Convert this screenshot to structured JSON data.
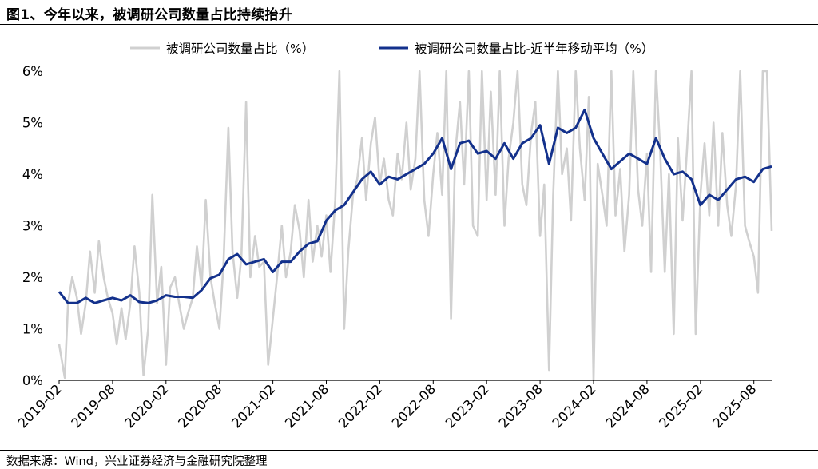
{
  "figure": {
    "title": "图1、今年以来，被调研公司数量占比持续抬升",
    "source": "数据来源：Wind，兴业证券经济与金融研究院整理"
  },
  "colors": {
    "weekly": "#d0d0d0",
    "moving_avg": "#13318c",
    "axis": "#000000"
  },
  "chart_data": {
    "type": "line",
    "title": "图1、今年以来，被调研公司数量占比持续抬升",
    "xlabel": "",
    "ylabel": "",
    "ylim": [
      0,
      6
    ],
    "y_ticks": [
      "0%",
      "1%",
      "2%",
      "3%",
      "4%",
      "5%",
      "6%"
    ],
    "x_ticks": [
      "2019-02",
      "2019-08",
      "2020-02",
      "2020-08",
      "2021-02",
      "2021-08",
      "2022-02",
      "2022-08",
      "2023-02",
      "2023-08",
      "2024-02",
      "2024-08",
      "2025-02",
      "2025-08"
    ],
    "x_range": [
      "2019-02",
      "2025-10"
    ],
    "grid": false,
    "legend_position": "top",
    "series": [
      {
        "name": "被调研公司数量占比（%）",
        "style": "light-gray-line",
        "points": [
          [
            "2019-02",
            0.7
          ],
          [
            "2019-02-20",
            0.05
          ],
          [
            "2019-03",
            1.5
          ],
          [
            "2019-03-15",
            2.0
          ],
          [
            "2019-04",
            1.6
          ],
          [
            "2019-04-15",
            0.9
          ],
          [
            "2019-05",
            1.5
          ],
          [
            "2019-05-15",
            2.5
          ],
          [
            "2019-06",
            1.7
          ],
          [
            "2019-06-15",
            2.7
          ],
          [
            "2019-07",
            2.0
          ],
          [
            "2019-07-15",
            1.6
          ],
          [
            "2019-08",
            1.3
          ],
          [
            "2019-08-15",
            0.7
          ],
          [
            "2019-09",
            1.4
          ],
          [
            "2019-09-15",
            0.8
          ],
          [
            "2019-10",
            1.5
          ],
          [
            "2019-10-15",
            2.6
          ],
          [
            "2019-11",
            1.7
          ],
          [
            "2019-11-15",
            0.1
          ],
          [
            "2019-12",
            1.0
          ],
          [
            "2019-12-15",
            3.6
          ],
          [
            "2020-01",
            1.5
          ],
          [
            "2020-01-15",
            2.2
          ],
          [
            "2020-02",
            0.3
          ],
          [
            "2020-02-15",
            1.8
          ],
          [
            "2020-03",
            2.0
          ],
          [
            "2020-03-15",
            1.5
          ],
          [
            "2020-04",
            1.0
          ],
          [
            "2020-04-15",
            1.3
          ],
          [
            "2020-05",
            1.6
          ],
          [
            "2020-05-15",
            2.6
          ],
          [
            "2020-06",
            1.8
          ],
          [
            "2020-06-15",
            3.5
          ],
          [
            "2020-07",
            2.0
          ],
          [
            "2020-07-15",
            1.5
          ],
          [
            "2020-08",
            1.0
          ],
          [
            "2020-08-15",
            2.3
          ],
          [
            "2020-09",
            4.9
          ],
          [
            "2020-09-15",
            2.5
          ],
          [
            "2020-10",
            1.6
          ],
          [
            "2020-10-15",
            2.4
          ],
          [
            "2020-11",
            5.4
          ],
          [
            "2020-11-15",
            2.0
          ],
          [
            "2020-12",
            2.8
          ],
          [
            "2020-12-15",
            2.2
          ],
          [
            "2021-01",
            2.3
          ],
          [
            "2021-01-15",
            0.3
          ],
          [
            "2021-02",
            1.2
          ],
          [
            "2021-02-15",
            2.0
          ],
          [
            "2021-03",
            3.0
          ],
          [
            "2021-03-15",
            2.0
          ],
          [
            "2021-04",
            2.5
          ],
          [
            "2021-04-15",
            3.4
          ],
          [
            "2021-05",
            2.9
          ],
          [
            "2021-05-15",
            2.0
          ],
          [
            "2021-06",
            3.5
          ],
          [
            "2021-06-15",
            2.3
          ],
          [
            "2021-07",
            3.0
          ],
          [
            "2021-07-15",
            2.4
          ],
          [
            "2021-08",
            3.2
          ],
          [
            "2021-08-15",
            2.1
          ],
          [
            "2021-09",
            3.5
          ],
          [
            "2021-09-15",
            6.0
          ],
          [
            "2021-10",
            1.0
          ],
          [
            "2021-10-15",
            2.5
          ],
          [
            "2021-11",
            3.6
          ],
          [
            "2021-11-15",
            3.9
          ],
          [
            "2021-12",
            4.7
          ],
          [
            "2021-12-15",
            3.5
          ],
          [
            "2022-01",
            4.6
          ],
          [
            "2022-01-15",
            5.1
          ],
          [
            "2022-02",
            3.8
          ],
          [
            "2022-02-15",
            4.3
          ],
          [
            "2022-03",
            3.5
          ],
          [
            "2022-03-15",
            3.2
          ],
          [
            "2022-04",
            4.4
          ],
          [
            "2022-04-15",
            3.9
          ],
          [
            "2022-05",
            5.0
          ],
          [
            "2022-05-15",
            3.7
          ],
          [
            "2022-06",
            4.3
          ],
          [
            "2022-06-15",
            6.0
          ],
          [
            "2022-07",
            3.5
          ],
          [
            "2022-07-15",
            2.8
          ],
          [
            "2022-08",
            4.0
          ],
          [
            "2022-08-15",
            4.8
          ],
          [
            "2022-09",
            3.6
          ],
          [
            "2022-09-15",
            6.0
          ],
          [
            "2022-10",
            1.2
          ],
          [
            "2022-10-15",
            4.4
          ],
          [
            "2022-11",
            5.4
          ],
          [
            "2022-11-15",
            3.8
          ],
          [
            "2022-12",
            6.0
          ],
          [
            "2022-12-15",
            3.0
          ],
          [
            "2023-01",
            2.8
          ],
          [
            "2023-01-15",
            6.0
          ],
          [
            "2023-02",
            3.5
          ],
          [
            "2023-02-15",
            5.6
          ],
          [
            "2023-03",
            3.6
          ],
          [
            "2023-03-15",
            6.0
          ],
          [
            "2023-04",
            3.0
          ],
          [
            "2023-04-15",
            4.3
          ],
          [
            "2023-05",
            5.0
          ],
          [
            "2023-05-15",
            6.0
          ],
          [
            "2023-06",
            3.8
          ],
          [
            "2023-06-15",
            3.4
          ],
          [
            "2023-07",
            4.8
          ],
          [
            "2023-07-15",
            5.4
          ],
          [
            "2023-08",
            2.8
          ],
          [
            "2023-08-15",
            3.8
          ],
          [
            "2023-09",
            0.2
          ],
          [
            "2023-09-15",
            3.6
          ],
          [
            "2023-10",
            6.0
          ],
          [
            "2023-10-15",
            4.0
          ],
          [
            "2023-11",
            4.5
          ],
          [
            "2023-11-15",
            3.1
          ],
          [
            "2023-12",
            6.0
          ],
          [
            "2023-12-15",
            4.5
          ],
          [
            "2024-01",
            3.5
          ],
          [
            "2024-01-15",
            5.5
          ],
          [
            "2024-02",
            0.0
          ],
          [
            "2024-02-15",
            4.2
          ],
          [
            "2024-03",
            3.6
          ],
          [
            "2024-03-15",
            3.0
          ],
          [
            "2024-04",
            6.0
          ],
          [
            "2024-04-15",
            3.2
          ],
          [
            "2024-05",
            4.1
          ],
          [
            "2024-05-15",
            2.5
          ],
          [
            "2024-06",
            3.6
          ],
          [
            "2024-06-15",
            6.0
          ],
          [
            "2024-07",
            3.7
          ],
          [
            "2024-07-15",
            3.0
          ],
          [
            "2024-08",
            4.4
          ],
          [
            "2024-08-15",
            2.1
          ],
          [
            "2024-09",
            6.0
          ],
          [
            "2024-09-15",
            4.5
          ],
          [
            "2024-10",
            2.1
          ],
          [
            "2024-10-15",
            4.0
          ],
          [
            "2024-11",
            0.9
          ],
          [
            "2024-11-15",
            4.7
          ],
          [
            "2024-12",
            3.1
          ],
          [
            "2024-12-15",
            4.4
          ],
          [
            "2025-01",
            6.0
          ],
          [
            "2025-01-15",
            0.9
          ],
          [
            "2025-02",
            3.6
          ],
          [
            "2025-02-15",
            4.6
          ],
          [
            "2025-03",
            3.2
          ],
          [
            "2025-03-15",
            5.0
          ],
          [
            "2025-04",
            3.0
          ],
          [
            "2025-04-15",
            4.8
          ],
          [
            "2025-05",
            3.4
          ],
          [
            "2025-05-15",
            2.8
          ],
          [
            "2025-06",
            3.8
          ],
          [
            "2025-06-15",
            6.0
          ],
          [
            "2025-07",
            3.0
          ],
          [
            "2025-07-15",
            2.7
          ],
          [
            "2025-08",
            2.4
          ],
          [
            "2025-08-15",
            1.7
          ],
          [
            "2025-09",
            6.0
          ],
          [
            "2025-09-15",
            6.0
          ],
          [
            "2025-10",
            2.9
          ]
        ]
      },
      {
        "name": "被调研公司数量占比-近半年移动平均（%）",
        "style": "dark-blue-line",
        "points": [
          [
            "2019-02",
            1.72
          ],
          [
            "2019-03",
            1.5
          ],
          [
            "2019-04",
            1.5
          ],
          [
            "2019-05",
            1.6
          ],
          [
            "2019-06",
            1.5
          ],
          [
            "2019-07",
            1.55
          ],
          [
            "2019-08",
            1.6
          ],
          [
            "2019-09",
            1.55
          ],
          [
            "2019-10",
            1.65
          ],
          [
            "2019-11",
            1.52
          ],
          [
            "2019-12",
            1.5
          ],
          [
            "2020-01",
            1.55
          ],
          [
            "2020-02",
            1.65
          ],
          [
            "2020-03",
            1.62
          ],
          [
            "2020-04",
            1.62
          ],
          [
            "2020-05",
            1.6
          ],
          [
            "2020-06",
            1.75
          ],
          [
            "2020-07",
            1.98
          ],
          [
            "2020-08",
            2.05
          ],
          [
            "2020-09",
            2.35
          ],
          [
            "2020-10",
            2.45
          ],
          [
            "2020-11",
            2.25
          ],
          [
            "2020-12",
            2.3
          ],
          [
            "2021-01",
            2.35
          ],
          [
            "2021-02",
            2.1
          ],
          [
            "2021-03",
            2.3
          ],
          [
            "2021-04",
            2.3
          ],
          [
            "2021-05",
            2.5
          ],
          [
            "2021-06",
            2.65
          ],
          [
            "2021-07",
            2.7
          ],
          [
            "2021-08",
            3.1
          ],
          [
            "2021-09",
            3.3
          ],
          [
            "2021-10",
            3.4
          ],
          [
            "2021-11",
            3.65
          ],
          [
            "2021-12",
            3.9
          ],
          [
            "2022-01",
            4.05
          ],
          [
            "2022-02",
            3.8
          ],
          [
            "2022-03",
            3.95
          ],
          [
            "2022-04",
            3.9
          ],
          [
            "2022-05",
            4.0
          ],
          [
            "2022-06",
            4.1
          ],
          [
            "2022-07",
            4.2
          ],
          [
            "2022-08",
            4.4
          ],
          [
            "2022-09",
            4.7
          ],
          [
            "2022-10",
            4.1
          ],
          [
            "2022-11",
            4.6
          ],
          [
            "2022-12",
            4.65
          ],
          [
            "2023-01",
            4.4
          ],
          [
            "2023-02",
            4.45
          ],
          [
            "2023-03",
            4.3
          ],
          [
            "2023-04",
            4.6
          ],
          [
            "2023-05",
            4.3
          ],
          [
            "2023-06",
            4.6
          ],
          [
            "2023-07",
            4.7
          ],
          [
            "2023-08",
            4.95
          ],
          [
            "2023-09",
            4.2
          ],
          [
            "2023-10",
            4.9
          ],
          [
            "2023-11",
            4.8
          ],
          [
            "2023-12",
            4.9
          ],
          [
            "2024-01",
            5.25
          ],
          [
            "2024-02",
            4.7
          ],
          [
            "2024-03",
            4.4
          ],
          [
            "2024-04",
            4.1
          ],
          [
            "2024-05",
            4.25
          ],
          [
            "2024-06",
            4.4
          ],
          [
            "2024-07",
            4.3
          ],
          [
            "2024-08",
            4.2
          ],
          [
            "2024-09",
            4.7
          ],
          [
            "2024-10",
            4.3
          ],
          [
            "2024-11",
            4.0
          ],
          [
            "2024-12",
            4.05
          ],
          [
            "2025-01",
            3.9
          ],
          [
            "2025-02",
            3.4
          ],
          [
            "2025-03",
            3.6
          ],
          [
            "2025-04",
            3.5
          ],
          [
            "2025-05",
            3.7
          ],
          [
            "2025-06",
            3.9
          ],
          [
            "2025-07",
            3.95
          ],
          [
            "2025-08",
            3.85
          ],
          [
            "2025-09",
            4.1
          ],
          [
            "2025-10",
            4.15
          ]
        ]
      }
    ]
  }
}
